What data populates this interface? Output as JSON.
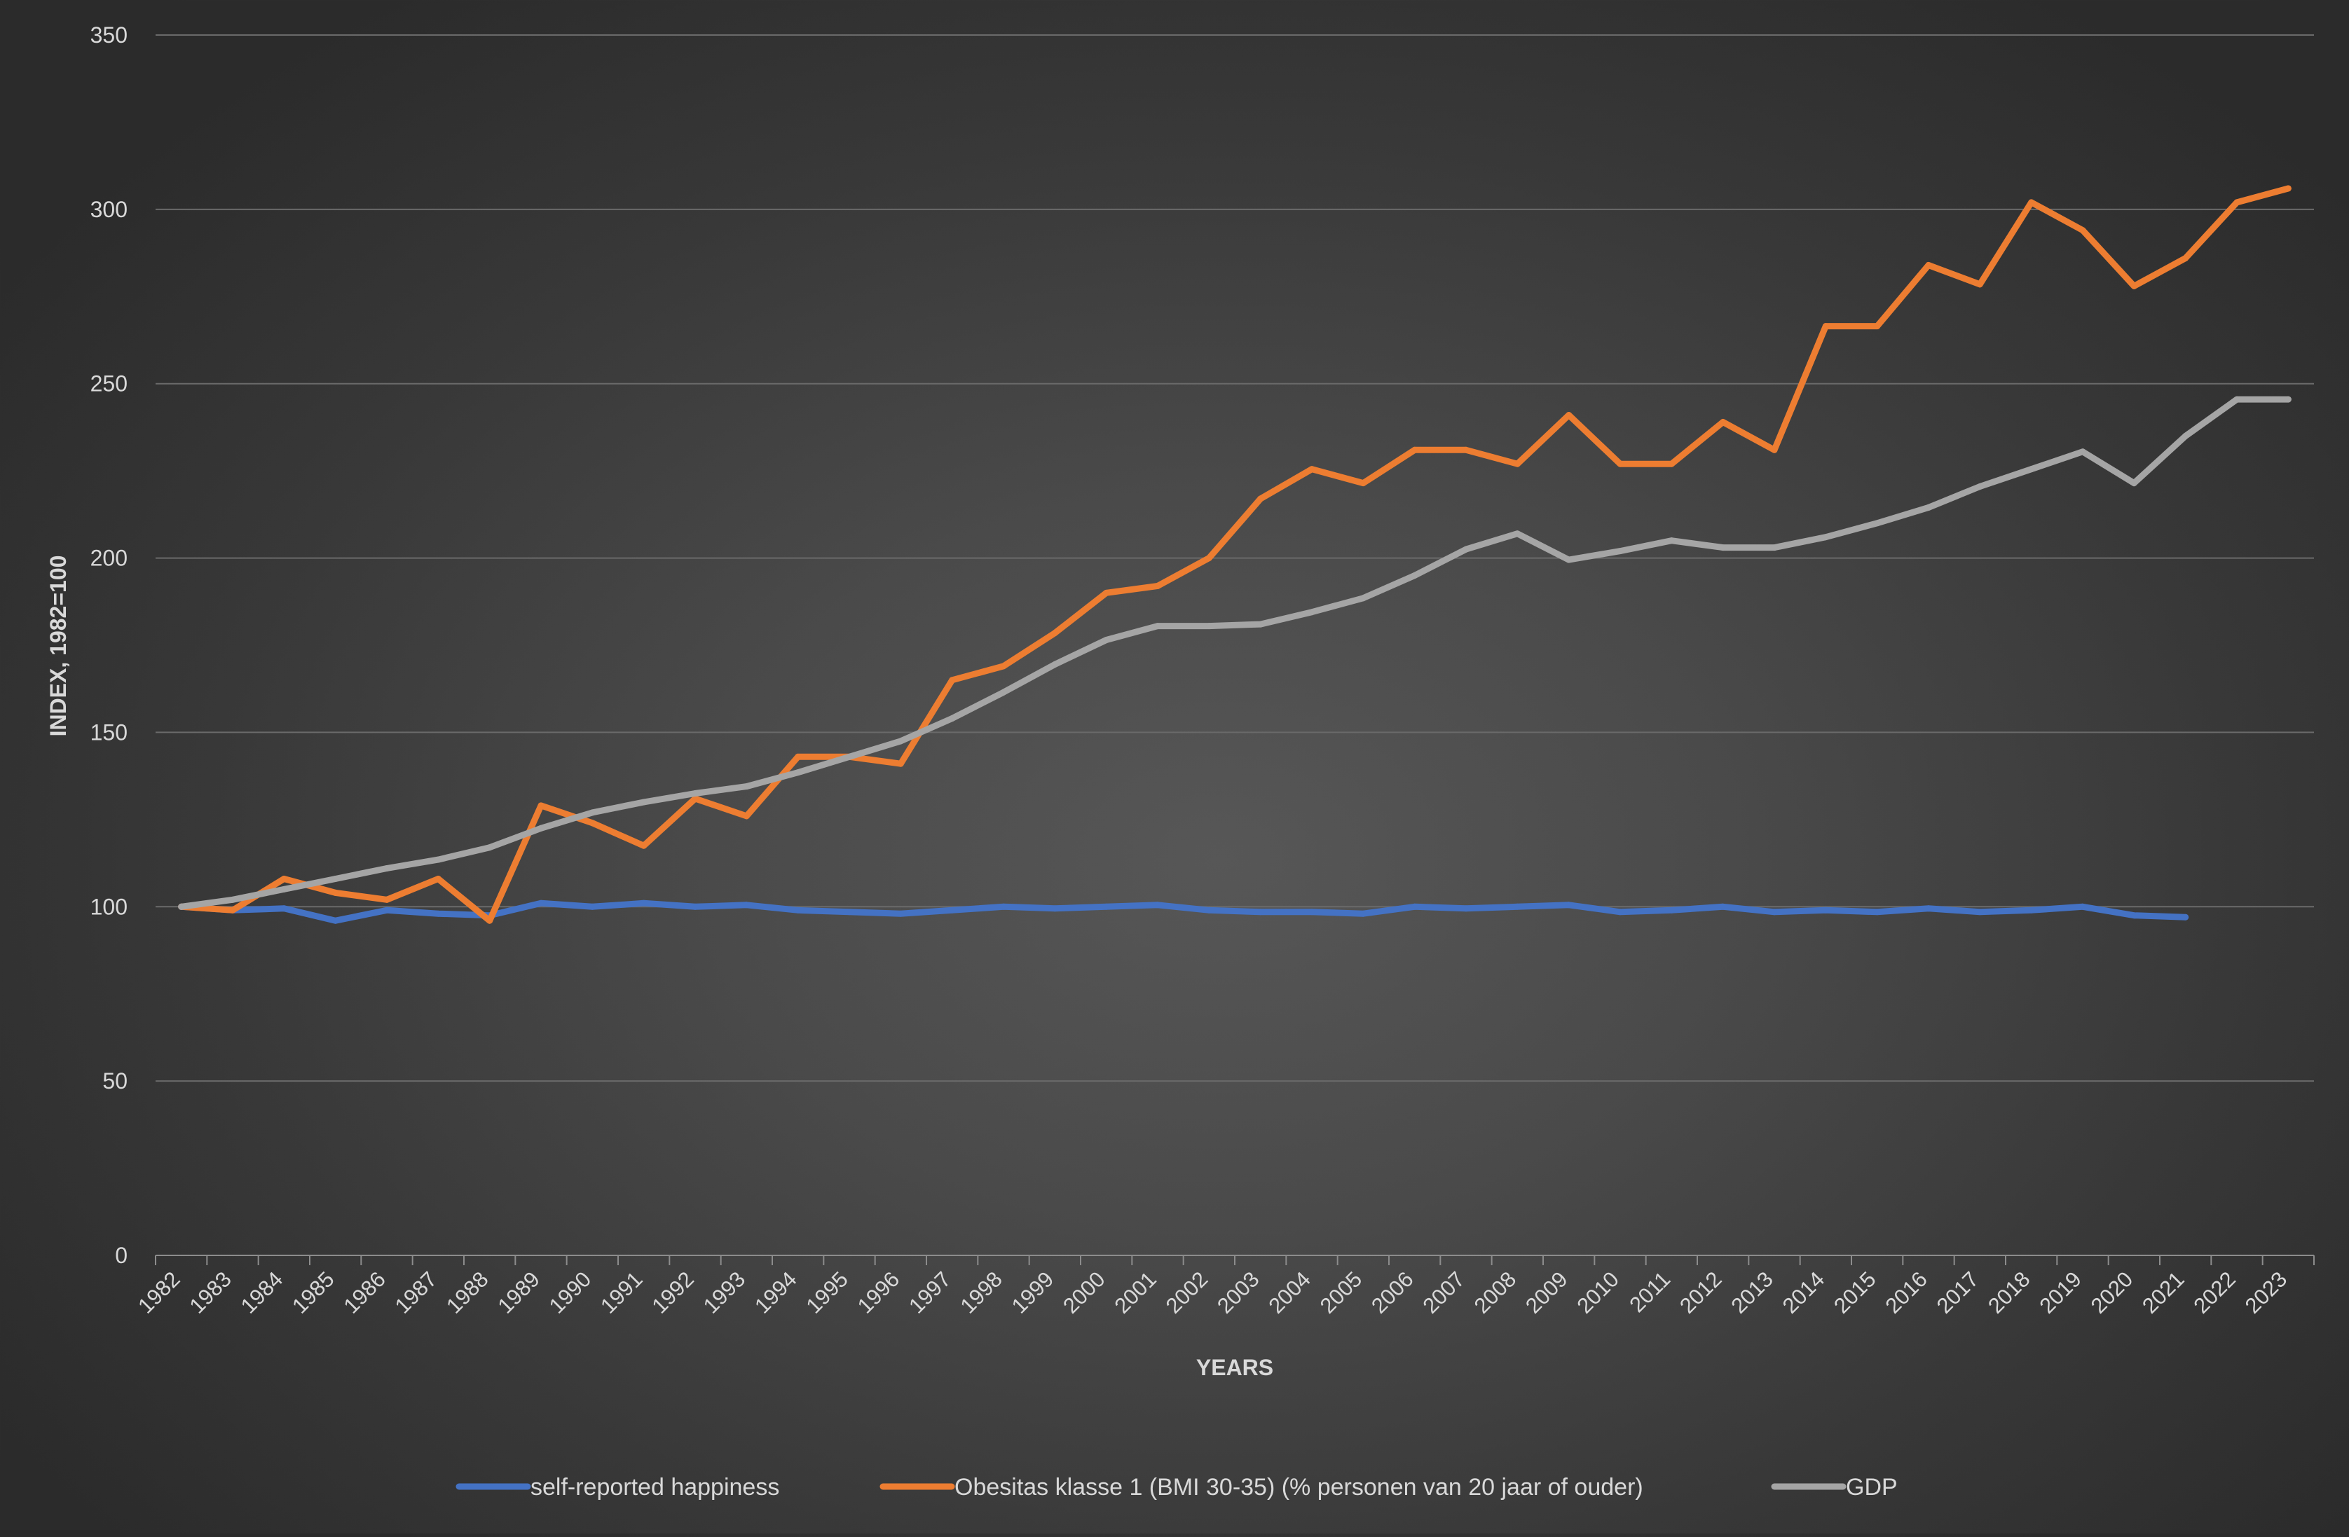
{
  "chart_data": {
    "type": "line",
    "title": "",
    "xlabel": "YEARS",
    "ylabel": "INDEX, 1982=100",
    "ylim": [
      0,
      350
    ],
    "yticks": [
      0,
      50,
      100,
      150,
      200,
      250,
      300,
      350
    ],
    "grid": true,
    "legend_position": "bottom",
    "categories": [
      "1982",
      "1983",
      "1984",
      "1985",
      "1986",
      "1987",
      "1988",
      "1989",
      "1990",
      "1991",
      "1992",
      "1993",
      "1994",
      "1995",
      "1996",
      "1997",
      "1998",
      "1999",
      "2000",
      "2001",
      "2002",
      "2003",
      "2004",
      "2005",
      "2006",
      "2007",
      "2008",
      "2009",
      "2010",
      "2011",
      "2012",
      "2013",
      "2014",
      "2015",
      "2016",
      "2017",
      "2018",
      "2019",
      "2020",
      "2021",
      "2022",
      "2023"
    ],
    "series": [
      {
        "name": "self-reported happiness",
        "color": "#4472c4",
        "values": [
          100,
          99,
          99.5,
          96,
          99,
          98,
          97.5,
          101,
          100,
          101,
          100,
          100.5,
          99,
          98.5,
          98,
          99,
          100,
          99.5,
          100,
          100.5,
          99,
          98.5,
          98.5,
          98,
          100,
          99.5,
          100,
          100.5,
          98.5,
          99,
          100,
          98.5,
          99,
          98.5,
          99.5,
          98.5,
          99,
          100,
          97.5,
          97,
          null,
          null
        ]
      },
      {
        "name": "Obesitas klasse 1 (BMI 30-35) (% personen van 20 jaar of ouder)",
        "color": "#ed7d31",
        "values": [
          100,
          99,
          108,
          104,
          102,
          108,
          96,
          129,
          124,
          117.5,
          131,
          126,
          143,
          143,
          141,
          165,
          169,
          178.5,
          190,
          192,
          200,
          217,
          225.5,
          221.5,
          231,
          231,
          227,
          241,
          227,
          227,
          239,
          231,
          266.5,
          266.5,
          284,
          278.5,
          302,
          294,
          278,
          286,
          302,
          306
        ]
      },
      {
        "name": "GDP",
        "color": "#a5a5a5",
        "values": [
          100,
          102,
          105,
          108,
          111,
          113.5,
          117,
          122.5,
          127,
          130,
          132.5,
          134.5,
          138.5,
          143,
          147.5,
          154,
          161.5,
          169.5,
          176.5,
          180.5,
          180.5,
          181,
          184.5,
          188.5,
          195,
          202.5,
          207,
          199.5,
          202,
          205,
          203,
          203,
          206,
          210,
          214.5,
          220.5,
          225.5,
          230.5,
          221.5,
          235,
          245.5,
          245.5
        ]
      }
    ]
  }
}
